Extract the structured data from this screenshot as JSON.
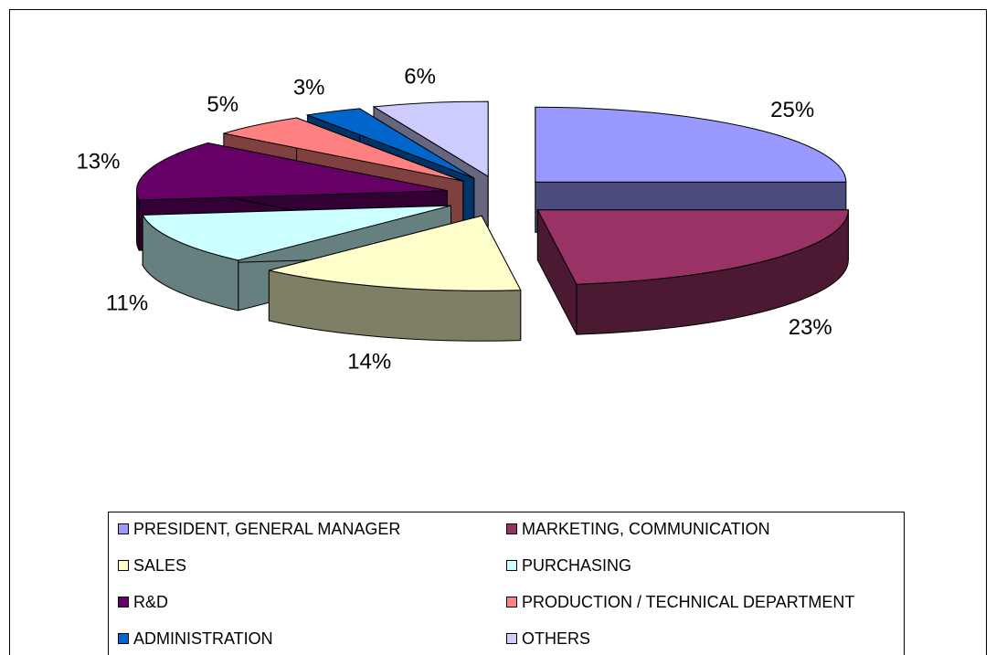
{
  "chart_data": {
    "type": "pie3d",
    "series": [
      {
        "name": "PRESIDENT, GENERAL MANAGER",
        "color": "#9999ff",
        "values": [
          25
        ],
        "value_labels": [
          "25%"
        ]
      },
      {
        "name": "MARKETING, COMMUNICATION",
        "color": "#993366",
        "values": [
          23
        ],
        "value_labels": [
          "23%"
        ]
      },
      {
        "name": "SALES",
        "color": "#ffffcc",
        "values": [
          14
        ],
        "value_labels": [
          "14%"
        ]
      },
      {
        "name": "PURCHASING",
        "color": "#ccffff",
        "values": [
          11
        ],
        "value_labels": [
          "11%"
        ]
      },
      {
        "name": "R&D",
        "color": "#660066",
        "values": [
          13
        ],
        "value_labels": [
          "13%"
        ]
      },
      {
        "name": "PRODUCTION / TECHNICAL DEPARTMENT",
        "color": "#ff8080",
        "values": [
          5
        ],
        "value_labels": [
          "5%"
        ]
      },
      {
        "name": "ADMINISTRATION",
        "color": "#0066cc",
        "values": [
          3
        ],
        "value_labels": [
          "3%"
        ]
      },
      {
        "name": "OTHERS",
        "color": "#ccccff",
        "values": [
          6
        ],
        "value_labels": [
          "6%"
        ]
      }
    ],
    "legend": "bottom"
  }
}
